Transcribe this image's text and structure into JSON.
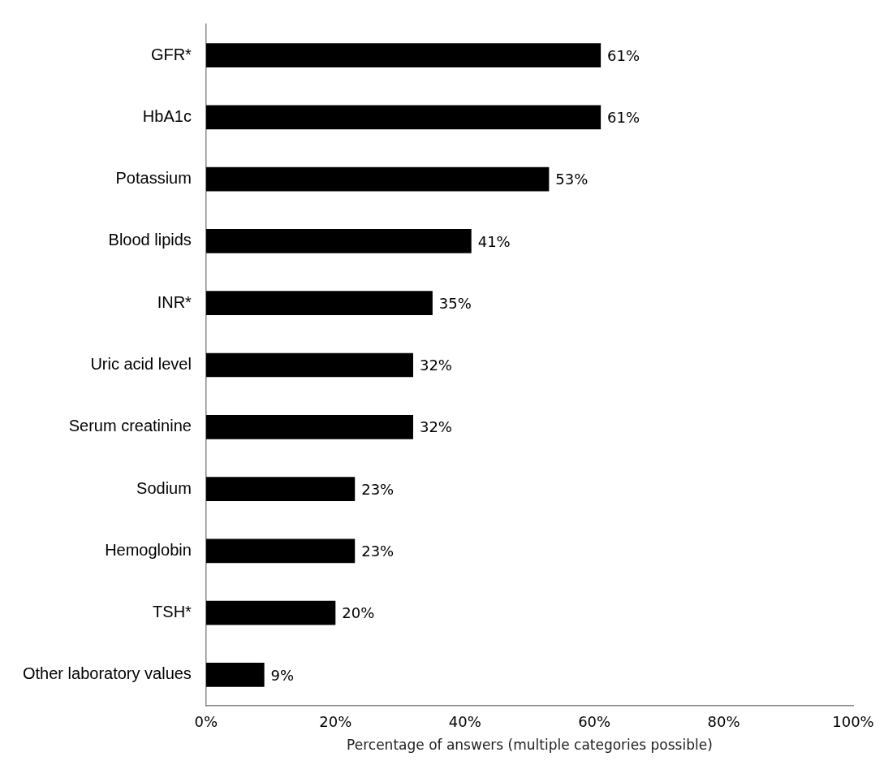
{
  "chart_data": {
    "type": "bar",
    "orientation": "horizontal",
    "xlabel": "Percentage of answers (multiple categories possible)",
    "categories": [
      "GFR*",
      "HbA1c",
      "Potassium",
      "Blood lipids",
      "INR*",
      "Uric acid level",
      "Serum creatinine",
      "Sodium",
      "Hemoglobin",
      "TSH*",
      "Other laboratory values"
    ],
    "values": [
      61,
      61,
      53,
      41,
      35,
      32,
      32,
      23,
      23,
      20,
      9
    ],
    "value_labels": [
      "61%",
      "61%",
      "53%",
      "41%",
      "35%",
      "32%",
      "32%",
      "23%",
      "23%",
      "20%",
      "9%"
    ],
    "color": "#000000",
    "xlim": [
      0,
      100
    ],
    "xticks": [
      {
        "value": 0,
        "label": "0%"
      },
      {
        "value": 20,
        "label": "20%"
      },
      {
        "value": 40,
        "label": "40%"
      },
      {
        "value": 60,
        "label": "60%"
      },
      {
        "value": 80,
        "label": "80%"
      },
      {
        "value": 100,
        "label": "100%"
      }
    ],
    "grid": false,
    "legend": false
  }
}
